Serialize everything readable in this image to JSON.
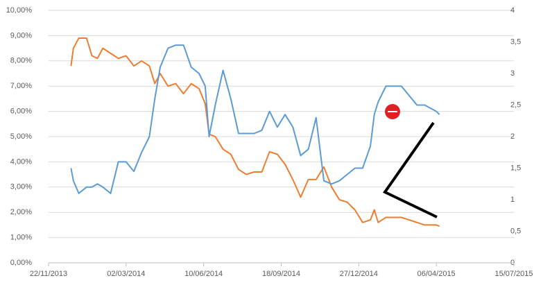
{
  "chart_data": {
    "type": "line",
    "x": [
      "2013-12-21",
      "2013-12-24",
      "2013-12-31",
      "2014-01-10",
      "2014-01-17",
      "2014-01-24",
      "2014-01-31",
      "2014-02-10",
      "2014-02-20",
      "2014-03-02",
      "2014-03-12",
      "2014-03-22",
      "2014-04-01",
      "2014-04-08",
      "2014-04-15",
      "2014-04-25",
      "2014-05-05",
      "2014-05-15",
      "2014-05-25",
      "2014-06-04",
      "2014-06-12",
      "2014-06-17",
      "2014-06-25",
      "2014-07-05",
      "2014-07-15",
      "2014-07-25",
      "2014-08-04",
      "2014-08-14",
      "2014-08-24",
      "2014-09-03",
      "2014-09-13",
      "2014-09-23",
      "2014-10-03",
      "2014-10-13",
      "2014-10-23",
      "2014-11-02",
      "2014-11-12",
      "2014-11-22",
      "2014-12-02",
      "2014-12-12",
      "2014-12-22",
      "2015-01-01",
      "2015-01-11",
      "2015-01-16",
      "2015-01-21",
      "2015-01-31",
      "2015-02-20",
      "2015-03-12",
      "2015-03-22",
      "2015-04-06",
      "2015-04-10"
    ],
    "series": [
      {
        "color": "#ed7d31",
        "values": [
          7.8,
          8.5,
          8.9,
          8.9,
          8.2,
          8.1,
          8.5,
          8.3,
          8.1,
          8.2,
          7.8,
          8.0,
          7.8,
          7.1,
          7.5,
          7.0,
          7.1,
          6.7,
          7.1,
          6.9,
          6.3,
          5.1,
          5.0,
          4.5,
          4.3,
          3.7,
          3.5,
          3.6,
          3.6,
          4.4,
          4.3,
          3.9,
          3.3,
          2.6,
          3.3,
          3.3,
          3.8,
          3.0,
          2.5,
          2.4,
          2.1,
          1.6,
          1.7,
          2.1,
          1.6,
          1.8,
          1.8,
          1.6,
          1.5,
          1.5,
          1.45
        ]
      },
      {
        "color": "#5b9bd5",
        "axis": "y2",
        "values": [
          1.5,
          1.3,
          1.1,
          1.2,
          1.2,
          1.25,
          1.2,
          1.1,
          1.6,
          1.6,
          1.45,
          1.75,
          2.0,
          2.6,
          3.1,
          3.4,
          3.45,
          3.45,
          3.1,
          3.0,
          2.8,
          2.0,
          2.5,
          3.05,
          2.6,
          2.05,
          2.05,
          2.05,
          2.1,
          2.4,
          2.15,
          2.35,
          2.15,
          1.7,
          1.8,
          2.3,
          1.3,
          1.25,
          1.3,
          1.4,
          1.5,
          1.5,
          1.85,
          2.35,
          2.55,
          2.8,
          2.8,
          2.5,
          2.5,
          2.4,
          2.35
        ]
      }
    ],
    "xlim": [
      {
        "value": "2013-11-22",
        "label": "22/11/2013"
      },
      {
        "value": "2015-07-15",
        "label": "15/07/2015"
      }
    ],
    "xticks": [
      {
        "value": "2013-11-22",
        "label": "22/11/2013"
      },
      {
        "value": "2014-03-02",
        "label": "02/03/2014"
      },
      {
        "value": "2014-06-10",
        "label": "10/06/2014"
      },
      {
        "value": "2014-09-18",
        "label": "18/09/2014"
      },
      {
        "value": "2014-12-27",
        "label": "27/12/2014"
      },
      {
        "value": "2015-04-06",
        "label": "06/04/2015"
      },
      {
        "value": "2015-07-15",
        "label": "15/07/2015"
      }
    ],
    "ylim": [
      0,
      10
    ],
    "yticks": [
      {
        "value": 0,
        "label": "0,00%"
      },
      {
        "value": 1,
        "label": "1,00%"
      },
      {
        "value": 2,
        "label": "2,00%"
      },
      {
        "value": 3,
        "label": "3,00%"
      },
      {
        "value": 4,
        "label": "4,00%"
      },
      {
        "value": 5,
        "label": "5,00%"
      },
      {
        "value": 6,
        "label": "6,00%"
      },
      {
        "value": 7,
        "label": "7,00%"
      },
      {
        "value": 8,
        "label": "8,00%"
      },
      {
        "value": 9,
        "label": "9,00%"
      },
      {
        "value": 10,
        "label": "10,00%"
      }
    ],
    "y2lim": [
      0,
      4
    ],
    "y2ticks": [
      0,
      {
        "value": 0.5,
        "label": "0,5"
      },
      1,
      {
        "value": 1.5,
        "label": "1,5"
      },
      2,
      {
        "value": 2.5,
        "label": "2,5"
      },
      3,
      {
        "value": 3.5,
        "label": "3,5"
      },
      4
    ],
    "grid": true
  }
}
